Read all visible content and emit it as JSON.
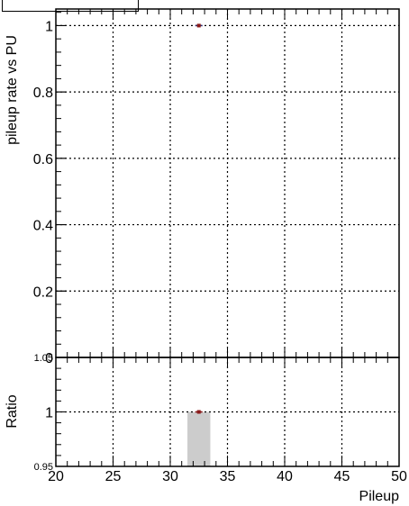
{
  "chart_data": [
    {
      "type": "scatter",
      "ylabel": "pileup rate vs PU",
      "xlabel": "",
      "xlim": [
        20,
        50
      ],
      "ylim": [
        0,
        1.05
      ],
      "x_ticks": [
        20,
        25,
        30,
        35,
        40,
        45,
        50
      ],
      "y_ticks": [
        0,
        0.2,
        0.4,
        0.6,
        0.8,
        1
      ],
      "y_tick_labels": [
        "0",
        "0.2",
        "0.4",
        "0.6",
        "0.8",
        "1"
      ],
      "grid": true,
      "points": [
        {
          "x": 32.5,
          "y": 1.0
        }
      ],
      "colors": {
        "marker": "#8b1a1a",
        "marker_edge": "#2a2a6e"
      }
    },
    {
      "type": "scatter",
      "ylabel": "Ratio",
      "xlabel": "Pileup",
      "xlim": [
        20,
        50
      ],
      "ylim": [
        0.95,
        1.05
      ],
      "x_ticks": [
        20,
        25,
        30,
        35,
        40,
        45,
        50
      ],
      "x_tick_labels": [
        "20",
        "25",
        "30",
        "35",
        "40",
        "45",
        "50"
      ],
      "y_ticks": [
        0.95,
        1,
        1.05
      ],
      "y_tick_labels": [
        "0.95",
        "1",
        "1.05"
      ],
      "grid": true,
      "points": [
        {
          "x": 32.5,
          "y": 1.0
        }
      ],
      "band": {
        "x0": 31.5,
        "x1": 33.5,
        "y0": 0.95,
        "y1": 1.0,
        "color": "#cccccc"
      },
      "colors": {
        "marker": "#8b1a1a"
      }
    }
  ]
}
